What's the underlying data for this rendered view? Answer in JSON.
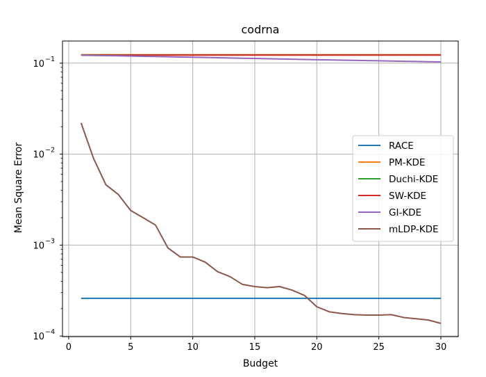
{
  "chart_data": {
    "type": "line",
    "title": "codrna",
    "xlabel": "Budget",
    "ylabel": "Mean Square Error",
    "yscale": "log",
    "xlim": [
      -0.5,
      31.4
    ],
    "ylim": [
      9.85e-05,
      0.175
    ],
    "xticks": [
      0,
      5,
      10,
      15,
      20,
      25,
      30
    ],
    "yticks": [
      {
        "value": 0.1,
        "base": "10",
        "exp": "−1"
      },
      {
        "value": 0.01,
        "base": "10",
        "exp": "−2"
      },
      {
        "value": 0.001,
        "base": "10",
        "exp": "−3"
      },
      {
        "value": 0.0001,
        "base": "10",
        "exp": "−4"
      }
    ],
    "grid": true,
    "legend_position": "center-right",
    "x": [
      1,
      2,
      3,
      4,
      5,
      6,
      7,
      8,
      9,
      10,
      11,
      12,
      13,
      14,
      15,
      16,
      17,
      18,
      19,
      20,
      21,
      22,
      23,
      24,
      25,
      26,
      27,
      28,
      29,
      30
    ],
    "series": [
      {
        "name": "RACE",
        "color": "#1f77b4",
        "values": [
          0.00026,
          0.00026,
          0.00026,
          0.00026,
          0.00026,
          0.00026,
          0.00026,
          0.00026,
          0.00026,
          0.00026,
          0.00026,
          0.00026,
          0.00026,
          0.00026,
          0.00026,
          0.00026,
          0.00026,
          0.00026,
          0.00026,
          0.00026,
          0.00026,
          0.00026,
          0.00026,
          0.00026,
          0.00026,
          0.00026,
          0.00026,
          0.00026,
          0.00026,
          0.00026
        ]
      },
      {
        "name": "PM-KDE",
        "color": "#ff7f0e",
        "values": [
          0.124,
          0.124,
          0.124,
          0.124,
          0.124,
          0.124,
          0.124,
          0.124,
          0.124,
          0.124,
          0.124,
          0.124,
          0.124,
          0.124,
          0.124,
          0.124,
          0.124,
          0.124,
          0.124,
          0.124,
          0.124,
          0.124,
          0.124,
          0.124,
          0.124,
          0.124,
          0.124,
          0.124,
          0.124,
          0.124
        ]
      },
      {
        "name": "Duchi-KDE",
        "color": "#2ca02c",
        "values": [
          0.123,
          0.123,
          0.123,
          0.123,
          0.123,
          0.123,
          0.123,
          0.123,
          0.123,
          0.123,
          0.123,
          0.123,
          0.123,
          0.123,
          0.123,
          0.123,
          0.123,
          0.123,
          0.123,
          0.123,
          0.123,
          0.123,
          0.123,
          0.123,
          0.123,
          0.123,
          0.123,
          0.123,
          0.123,
          0.123
        ]
      },
      {
        "name": "SW-KDE",
        "color": "#d62728",
        "values": [
          0.1225,
          0.1225,
          0.1225,
          0.1225,
          0.1225,
          0.1225,
          0.1225,
          0.1225,
          0.1225,
          0.1225,
          0.1225,
          0.1225,
          0.1225,
          0.1225,
          0.1225,
          0.1225,
          0.1225,
          0.1225,
          0.1225,
          0.1225,
          0.1225,
          0.1225,
          0.1225,
          0.1225,
          0.1225,
          0.1225,
          0.1225,
          0.1225,
          0.1225,
          0.1225
        ]
      },
      {
        "name": "GI-KDE",
        "color": "#9467bd",
        "values": [
          0.122,
          0.1215,
          0.121,
          0.1203,
          0.1196,
          0.1189,
          0.1182,
          0.1175,
          0.1168,
          0.1161,
          0.1154,
          0.1147,
          0.114,
          0.1133,
          0.1126,
          0.1119,
          0.1112,
          0.1105,
          0.1098,
          0.1091,
          0.1085,
          0.1079,
          0.1073,
          0.1067,
          0.1061,
          0.1055,
          0.1049,
          0.1043,
          0.1037,
          0.1031
        ]
      },
      {
        "name": "mLDP-KDE",
        "color": "#8c564b",
        "values": [
          0.022,
          0.009,
          0.0046,
          0.0036,
          0.0024,
          0.002,
          0.00166,
          0.00093,
          0.00074,
          0.00074,
          0.00065,
          0.00051,
          0.00045,
          0.00037,
          0.00035,
          0.00034,
          0.00035,
          0.00032,
          0.00028,
          0.00021,
          0.000185,
          0.000177,
          0.000172,
          0.00017,
          0.00017,
          0.000172,
          0.00016,
          0.000155,
          0.00015,
          0.000138
        ]
      }
    ]
  }
}
